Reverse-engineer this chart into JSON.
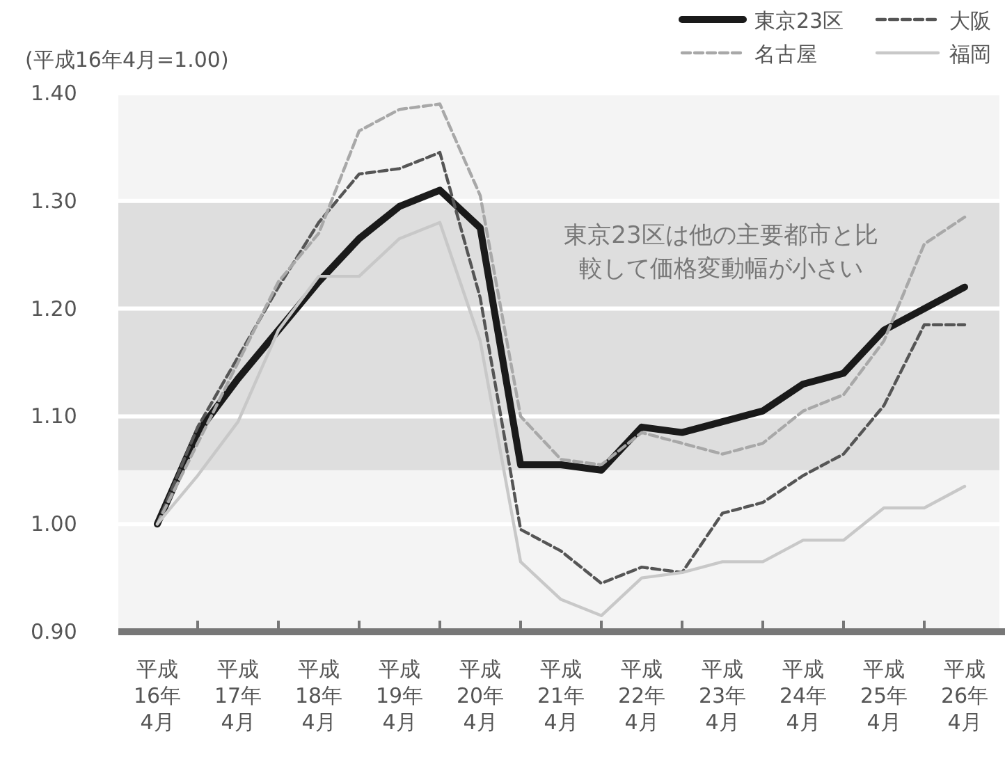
{
  "chart_data": {
    "type": "line",
    "ylabel": "(平成16年4月=1.00)",
    "categories": [
      "平成\n16年\n4月",
      null,
      "平成\n17年\n4月",
      null,
      "平成\n18年\n4月",
      null,
      "平成\n19年\n4月",
      null,
      "平成\n20年\n4月",
      null,
      "平成\n21年\n4月",
      null,
      "平成\n22年\n4月",
      null,
      "平成\n23年\n4月",
      null,
      "平成\n24年\n4月",
      null,
      "平成\n25年\n4月",
      null,
      "平成\n26年\n4月"
    ],
    "ylim": [
      0.9,
      1.4
    ],
    "yticks": [
      {
        "value": 0.9,
        "label": "0.90"
      },
      {
        "value": 1.0,
        "label": "1.00"
      },
      {
        "value": 1.1,
        "label": "1.10"
      },
      {
        "value": 1.2,
        "label": "1.20"
      },
      {
        "value": 1.3,
        "label": "1.30"
      },
      {
        "value": 1.4,
        "label": "1.40"
      }
    ],
    "grid": "y",
    "legend": "top right",
    "marker": "none",
    "bands": [
      {
        "axis": "y",
        "from": 1.05,
        "to": 1.3,
        "label": "東京23区は他の主要都市と比較して価格変動幅が小さい",
        "color": "#dedede"
      }
    ],
    "series": [
      {
        "name": "東京23区",
        "color": "#1a1a1a",
        "line_style": "solid",
        "values": [
          1.0,
          1.085,
          1.135,
          1.18,
          1.225,
          1.265,
          1.295,
          1.31,
          1.275,
          1.055,
          1.055,
          1.05,
          1.09,
          1.085,
          1.095,
          1.105,
          1.13,
          1.14,
          1.18,
          1.2,
          1.22
        ]
      },
      {
        "name": "大阪",
        "color": "#555555",
        "line_style": "dashed",
        "values": [
          1.0,
          1.09,
          1.155,
          1.22,
          1.28,
          1.325,
          1.33,
          1.345,
          1.21,
          0.995,
          0.975,
          0.945,
          0.96,
          0.955,
          1.01,
          1.02,
          1.045,
          1.065,
          1.11,
          1.185,
          1.185
        ]
      },
      {
        "name": "名古屋",
        "color": "#a8a8a8",
        "line_style": "dashed",
        "values": [
          1.0,
          1.075,
          1.15,
          1.225,
          1.27,
          1.365,
          1.385,
          1.39,
          1.305,
          1.1,
          1.06,
          1.055,
          1.085,
          1.075,
          1.065,
          1.075,
          1.105,
          1.12,
          1.17,
          1.26,
          1.285
        ]
      },
      {
        "name": "福岡",
        "color": "#c8c8c8",
        "line_style": "solid",
        "values": [
          1.0,
          1.045,
          1.095,
          1.18,
          1.23,
          1.23,
          1.265,
          1.28,
          1.17,
          0.965,
          0.93,
          0.915,
          0.95,
          0.955,
          0.965,
          0.965,
          0.985,
          0.985,
          1.015,
          1.015,
          1.035
        ]
      }
    ]
  }
}
